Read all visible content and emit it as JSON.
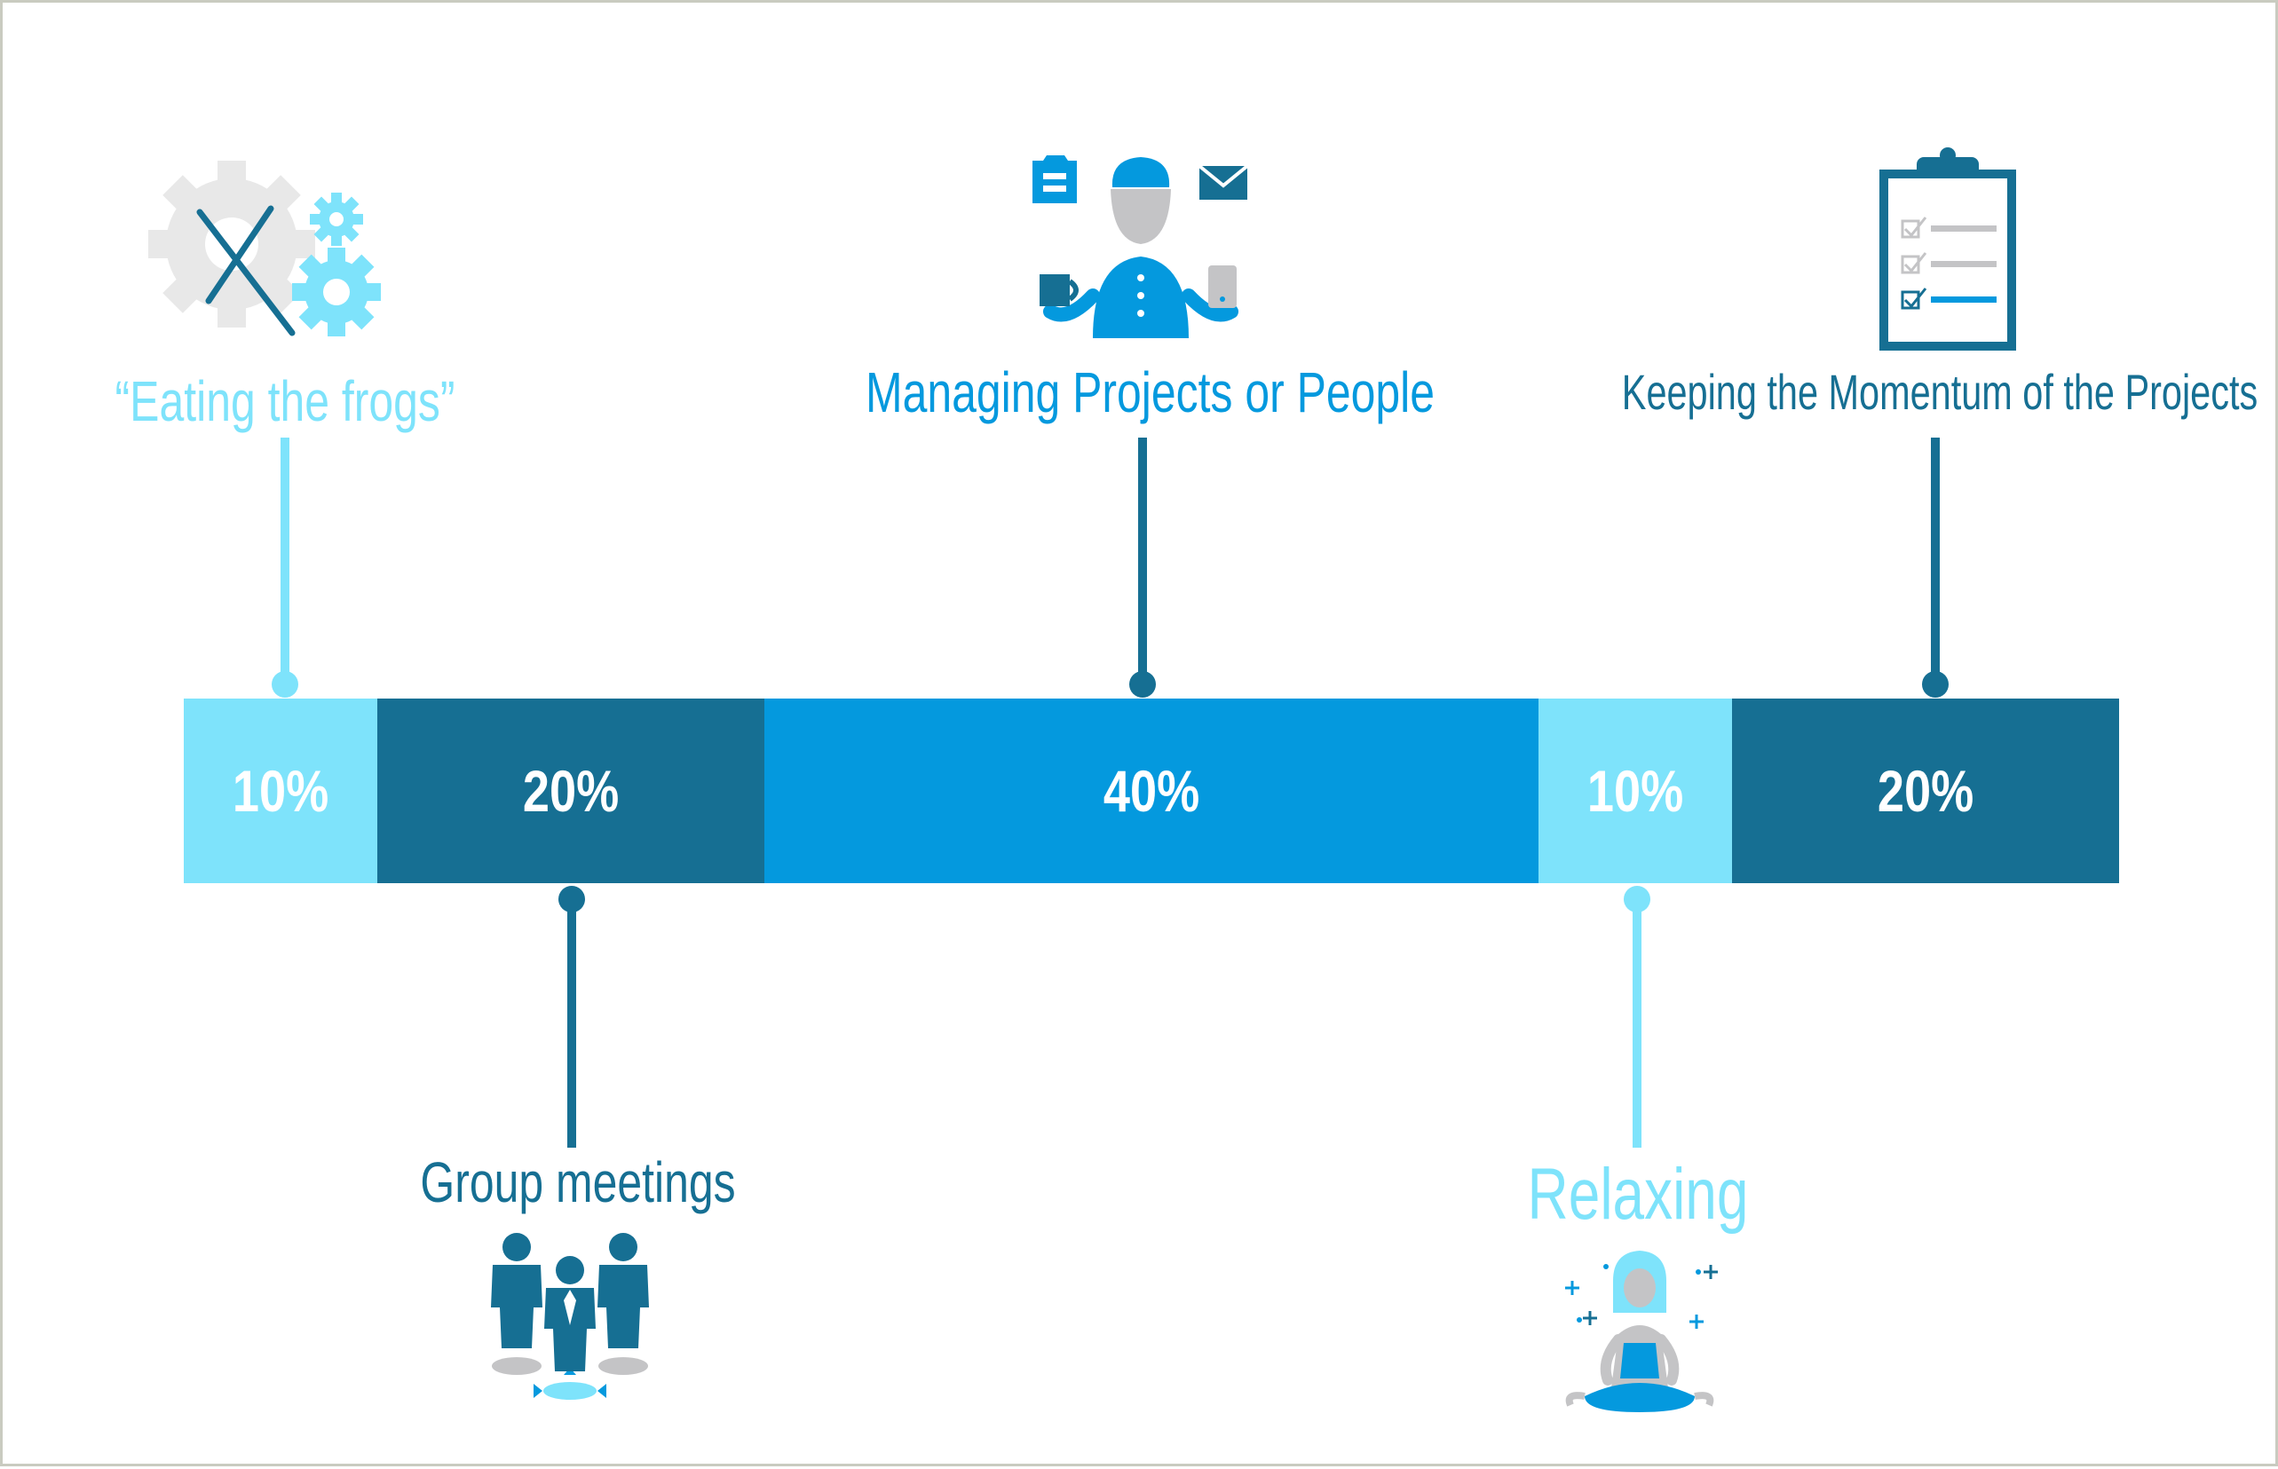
{
  "colors": {
    "light": "#7ee3fb",
    "dark": "#166f93",
    "mid": "#0499de",
    "gray": "#c4c4c6",
    "bg": "#ffffff"
  },
  "segments": [
    {
      "percent": 10,
      "label": "10%",
      "color": "#7ee3fb"
    },
    {
      "percent": 20,
      "label": "20%",
      "color": "#166f93"
    },
    {
      "percent": 40,
      "label": "40%",
      "color": "#0499de"
    },
    {
      "percent": 10,
      "label": "10%",
      "color": "#7ee3fb"
    },
    {
      "percent": 20,
      "label": "20%",
      "color": "#166f93"
    }
  ],
  "activities": {
    "eating_frogs": {
      "text": "“Eating the frogs”",
      "icon": "gears-icon"
    },
    "group_meetings": {
      "text": "Group meetings",
      "icon": "group-people-icon"
    },
    "managing": {
      "text": "Managing Projects or People",
      "icon": "multitasking-person-icon"
    },
    "relaxing": {
      "text": "Relaxing",
      "icon": "meditation-icon"
    },
    "momentum": {
      "text": "Keeping the Momentum of the Projects",
      "icon": "clipboard-checklist-icon"
    }
  }
}
